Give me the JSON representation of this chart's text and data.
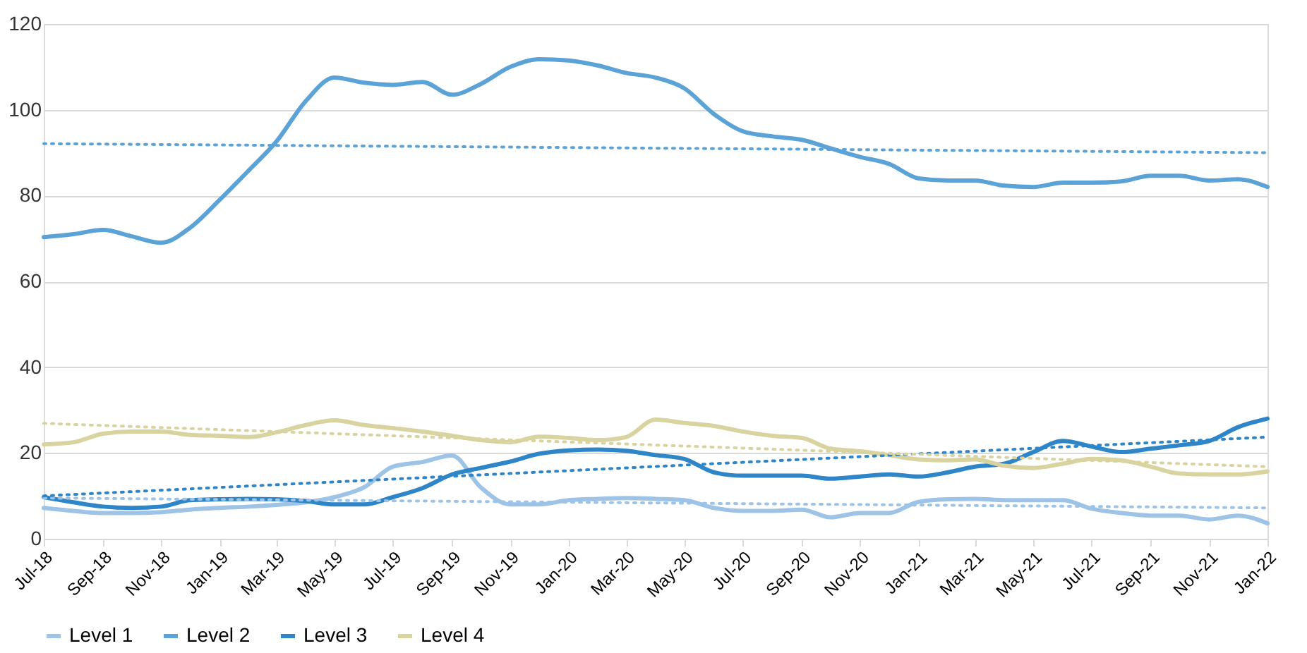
{
  "chart_data": {
    "type": "line",
    "x": [
      "2018-07",
      "2018-08",
      "2018-09",
      "2018-10",
      "2018-11",
      "2018-12",
      "2019-01",
      "2019-02",
      "2019-03",
      "2019-04",
      "2019-05",
      "2019-06",
      "2019-07",
      "2019-08",
      "2019-09",
      "2019-10",
      "2019-11",
      "2019-12",
      "2020-01",
      "2020-02",
      "2020-03",
      "2020-04",
      "2020-05",
      "2020-06",
      "2020-07",
      "2020-08",
      "2020-09",
      "2020-10",
      "2020-11",
      "2020-12",
      "2021-01",
      "2021-02",
      "2021-03",
      "2021-04",
      "2021-05",
      "2021-06",
      "2021-07",
      "2021-08",
      "2021-09",
      "2021-10",
      "2021-11",
      "2021-12",
      "2022-01"
    ],
    "series": [
      {
        "name": "Level 1",
        "color": "#9dc3e6",
        "values": [
          7.2,
          6.5,
          6,
          6,
          6.2,
          6.8,
          7.2,
          7.5,
          7.9,
          8.5,
          9.7,
          12,
          16.8,
          17.9,
          19.4,
          12,
          8,
          8,
          9,
          9.3,
          9.5,
          9.3,
          9,
          7.2,
          6.5,
          6.5,
          6.8,
          5,
          6,
          6,
          8.6,
          9.2,
          9.3,
          9,
          9,
          9,
          7,
          6,
          5.4,
          5.4,
          4.5,
          5.4,
          3.6
        ]
      },
      {
        "name": "Level 2",
        "color": "#5ba3d6",
        "values": [
          70.3,
          71,
          72,
          70.5,
          69,
          72.5,
          79,
          86,
          92.5,
          102,
          107.5,
          106.3,
          105.8,
          106.5,
          103.5,
          106,
          110,
          111.8,
          111.5,
          110.3,
          108.6,
          107.5,
          105,
          99,
          95,
          93.8,
          93,
          91,
          89,
          87.4,
          84,
          83.5,
          83.5,
          82.3,
          82,
          83,
          83,
          83.3,
          84.6,
          84.6,
          83.5,
          83.8,
          82
        ]
      },
      {
        "name": "Level 3",
        "color": "#2e86c8",
        "values": [
          9.7,
          8.5,
          7.5,
          7.2,
          7.5,
          9,
          9.2,
          9.3,
          9.2,
          8.8,
          8,
          8,
          9.7,
          11.8,
          15,
          16.5,
          18,
          19.8,
          20.6,
          20.8,
          20.5,
          19.5,
          18.6,
          15.5,
          14.7,
          14.7,
          14.7,
          14,
          14.5,
          15,
          14.5,
          15.5,
          16.8,
          17.5,
          20.2,
          22.8,
          21.5,
          20.2,
          21,
          21.8,
          22.8,
          26,
          28
        ]
      },
      {
        "name": "Level 4",
        "color": "#d9d3a0",
        "values": [
          22,
          22.5,
          24.5,
          25,
          25,
          24.2,
          24,
          23.7,
          24.8,
          26.5,
          27.6,
          26.5,
          25.8,
          25,
          24,
          23,
          22.5,
          23.8,
          23.5,
          23,
          23.7,
          27.8,
          27,
          26.3,
          25,
          24,
          23.5,
          21,
          20.4,
          19.5,
          18.5,
          18.3,
          18.5,
          17,
          16.5,
          17.5,
          18.6,
          18.3,
          16.8,
          15.2,
          15,
          15,
          15.7
        ]
      },
      {
        "type": "line",
        "line_style": "dotted",
        "color": "#9dc3e6",
        "x": [
          "2018-07",
          "2022-01"
        ],
        "values": [
          9.5,
          7.2
        ]
      },
      {
        "type": "line",
        "line_style": "dotted",
        "color": "#5ba3d6",
        "x": [
          "2018-07",
          "2022-01"
        ],
        "values": [
          92.1,
          90
        ]
      },
      {
        "type": "line",
        "line_style": "dotted",
        "color": "#2e86c8",
        "x": [
          "2018-07",
          "2022-01"
        ],
        "values": [
          10,
          23.7
        ]
      },
      {
        "type": "line",
        "line_style": "dotted",
        "color": "#d9d3a0",
        "x": [
          "2018-07",
          "2022-01"
        ],
        "values": [
          26.9,
          16.8
        ]
      }
    ],
    "xlim": [
      "2018-07",
      "2022-01"
    ],
    "xticks": [
      {
        "value": "2018-07",
        "label": "Jul-18"
      },
      {
        "value": "2018-09",
        "label": "Sep-18"
      },
      {
        "value": "2018-11",
        "label": "Nov-18"
      },
      {
        "value": "2019-01",
        "label": "Jan-19"
      },
      {
        "value": "2019-03",
        "label": "Mar-19"
      },
      {
        "value": "2019-05",
        "label": "May-19"
      },
      {
        "value": "2019-07",
        "label": "Jul-19"
      },
      {
        "value": "2019-09",
        "label": "Sep-19"
      },
      {
        "value": "2019-11",
        "label": "Nov-19"
      },
      {
        "value": "2020-01",
        "label": "Jan-20"
      },
      {
        "value": "2020-03",
        "label": "Mar-20"
      },
      {
        "value": "2020-05",
        "label": "May-20"
      },
      {
        "value": "2020-07",
        "label": "Jul-20"
      },
      {
        "value": "2020-09",
        "label": "Sep-20"
      },
      {
        "value": "2020-11",
        "label": "Nov-20"
      },
      {
        "value": "2021-01",
        "label": "Jan-21"
      },
      {
        "value": "2021-03",
        "label": "Mar-21"
      },
      {
        "value": "2021-05",
        "label": "May-21"
      },
      {
        "value": "2021-07",
        "label": "Jul-21"
      },
      {
        "value": "2021-09",
        "label": "Sep-21"
      },
      {
        "value": "2021-11",
        "label": "Nov-21"
      },
      {
        "value": "2022-01",
        "label": "Jan-22"
      }
    ],
    "ylim": [
      0,
      120
    ],
    "yticks": [
      0,
      20,
      40,
      60,
      80,
      100,
      120
    ],
    "grid": "y",
    "legend": "bottom",
    "line_style": "solid"
  }
}
